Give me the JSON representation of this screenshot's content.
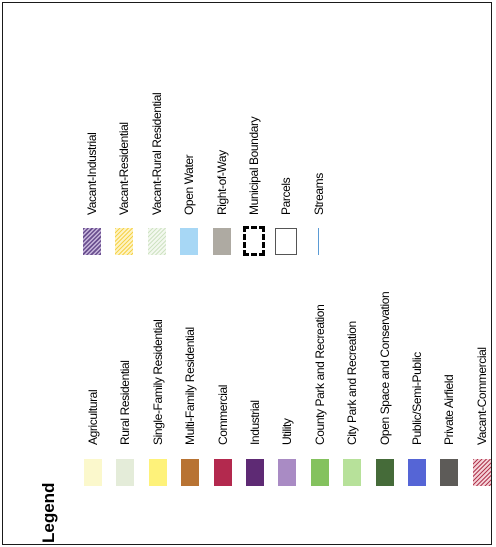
{
  "legend": {
    "title": "Legend",
    "left_column": [
      {
        "label": "Agricultural",
        "icon": "agricultural-swatch",
        "color": "#fbf8cc"
      },
      {
        "label": "Rural Residential",
        "icon": "rural-residential-swatch",
        "color": "#e4ecd9"
      },
      {
        "label": "Single-Family Residential",
        "icon": "single-family-residential-swatch",
        "color": "#fef27a"
      },
      {
        "label": "Multi-Family Residential",
        "icon": "multi-family-residential-swatch",
        "color": "#b87333"
      },
      {
        "label": "Commercial",
        "icon": "commercial-swatch",
        "color": "#b3294e"
      },
      {
        "label": "Industrial",
        "icon": "industrial-swatch",
        "color": "#5e2a74"
      },
      {
        "label": "Utility",
        "icon": "utility-swatch",
        "color": "#a98bc4"
      },
      {
        "label": "County Park and Recreation",
        "icon": "county-park-swatch",
        "color": "#84c25e"
      },
      {
        "label": "City Park and Recreation",
        "icon": "city-park-swatch",
        "color": "#b7e19a"
      },
      {
        "label": "Open Space and Conservation",
        "icon": "open-space-swatch",
        "color": "#456b39"
      },
      {
        "label": "Public/Semi-Public",
        "icon": "public-semi-public-swatch",
        "color": "#5565d6"
      },
      {
        "label": "Private Airfield",
        "icon": "private-airfield-swatch",
        "color": "#5d5b58"
      },
      {
        "label": "Vacant-Commercial",
        "icon": "vacant-commercial-hatch-swatch",
        "color": "#b23a52"
      }
    ],
    "right_column": [
      {
        "label": "Vacant-Industrial",
        "icon": "vacant-industrial-hatch-swatch",
        "color": "#6a4f8f"
      },
      {
        "label": "Vacant-Residential",
        "icon": "vacant-residential-hatch-swatch",
        "color": "#f6d24a"
      },
      {
        "label": "Vacant-Rural Residential",
        "icon": "vacant-rural-residential-hatch-swatch",
        "color": "#cfe3c3"
      },
      {
        "label": "Open Water",
        "icon": "open-water-swatch",
        "color": "#a7d7f5"
      },
      {
        "label": "Right-of-Way",
        "icon": "right-of-way-swatch",
        "color": "#aeaaa2"
      },
      {
        "label": "Municipal Boundary",
        "icon": "municipal-boundary-dashed-icon",
        "color": "#000000"
      },
      {
        "label": "Parcels",
        "icon": "parcels-outline-icon",
        "color": "#ffffff"
      },
      {
        "label": "Streams",
        "icon": "stream-line-icon",
        "color": "#5b9bd5"
      }
    ]
  }
}
